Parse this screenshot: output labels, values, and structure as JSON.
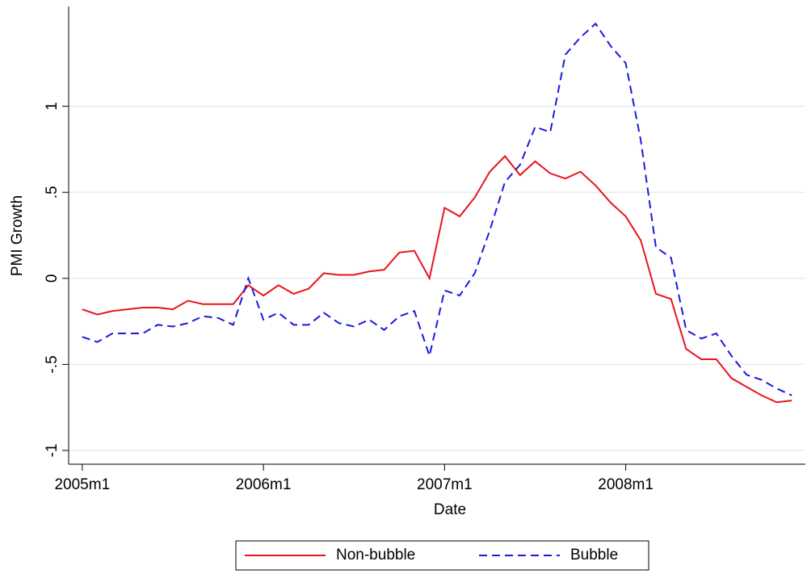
{
  "chart_data": {
    "type": "line",
    "xlabel": "Date",
    "ylabel": "PMI Growth",
    "x": [
      "2005m1",
      "2005m2",
      "2005m3",
      "2005m4",
      "2005m5",
      "2005m6",
      "2005m7",
      "2005m8",
      "2005m9",
      "2005m10",
      "2005m11",
      "2005m12",
      "2006m1",
      "2006m2",
      "2006m3",
      "2006m4",
      "2006m5",
      "2006m6",
      "2006m7",
      "2006m8",
      "2006m9",
      "2006m10",
      "2006m11",
      "2006m12",
      "2007m1",
      "2007m2",
      "2007m3",
      "2007m4",
      "2007m5",
      "2007m6",
      "2007m7",
      "2007m8",
      "2007m9",
      "2007m10",
      "2007m11",
      "2007m12",
      "2008m1",
      "2008m2",
      "2008m3",
      "2008m4",
      "2008m5",
      "2008m6",
      "2008m7",
      "2008m8",
      "2008m9",
      "2008m10",
      "2008m11",
      "2008m12"
    ],
    "xticks": [
      "2005m1",
      "2006m1",
      "2007m1",
      "2008m1"
    ],
    "ylim": [
      -1.08,
      1.58
    ],
    "yticks": [
      -1,
      {
        "value": -0.5,
        "label": "-.5"
      },
      0,
      {
        "value": 0.5,
        "label": ".5"
      },
      1
    ],
    "grid": true,
    "legend": "bottom",
    "series": [
      {
        "name": "Non-bubble",
        "color": "#e8141c",
        "dash": "solid",
        "values": [
          -0.18,
          -0.21,
          -0.19,
          -0.18,
          -0.17,
          -0.17,
          -0.18,
          -0.13,
          -0.15,
          -0.15,
          -0.15,
          -0.04,
          -0.1,
          -0.04,
          -0.09,
          -0.06,
          0.03,
          0.02,
          0.02,
          0.04,
          0.05,
          0.15,
          0.16,
          0.0,
          0.41,
          0.36,
          0.47,
          0.62,
          0.71,
          0.6,
          0.68,
          0.61,
          0.58,
          0.62,
          0.54,
          0.44,
          0.36,
          0.22,
          -0.09,
          -0.12,
          -0.41,
          -0.47,
          -0.47,
          -0.58,
          -0.63,
          -0.68,
          -0.72,
          -0.71
        ]
      },
      {
        "name": "Bubble",
        "color": "#1a1adc",
        "dash": "dashed",
        "values": [
          -0.34,
          -0.37,
          -0.32,
          -0.32,
          -0.32,
          -0.27,
          -0.28,
          -0.26,
          -0.22,
          -0.23,
          -0.27,
          0.0,
          -0.24,
          -0.2,
          -0.27,
          -0.27,
          -0.2,
          -0.26,
          -0.28,
          -0.24,
          -0.3,
          -0.22,
          -0.19,
          -0.45,
          -0.07,
          -0.1,
          0.03,
          0.28,
          0.56,
          0.66,
          0.88,
          0.85,
          1.3,
          1.4,
          1.48,
          1.35,
          1.25,
          0.8,
          0.18,
          0.12,
          -0.3,
          -0.35,
          -0.32,
          -0.45,
          -0.56,
          -0.59,
          -0.64,
          -0.68
        ]
      }
    ]
  }
}
